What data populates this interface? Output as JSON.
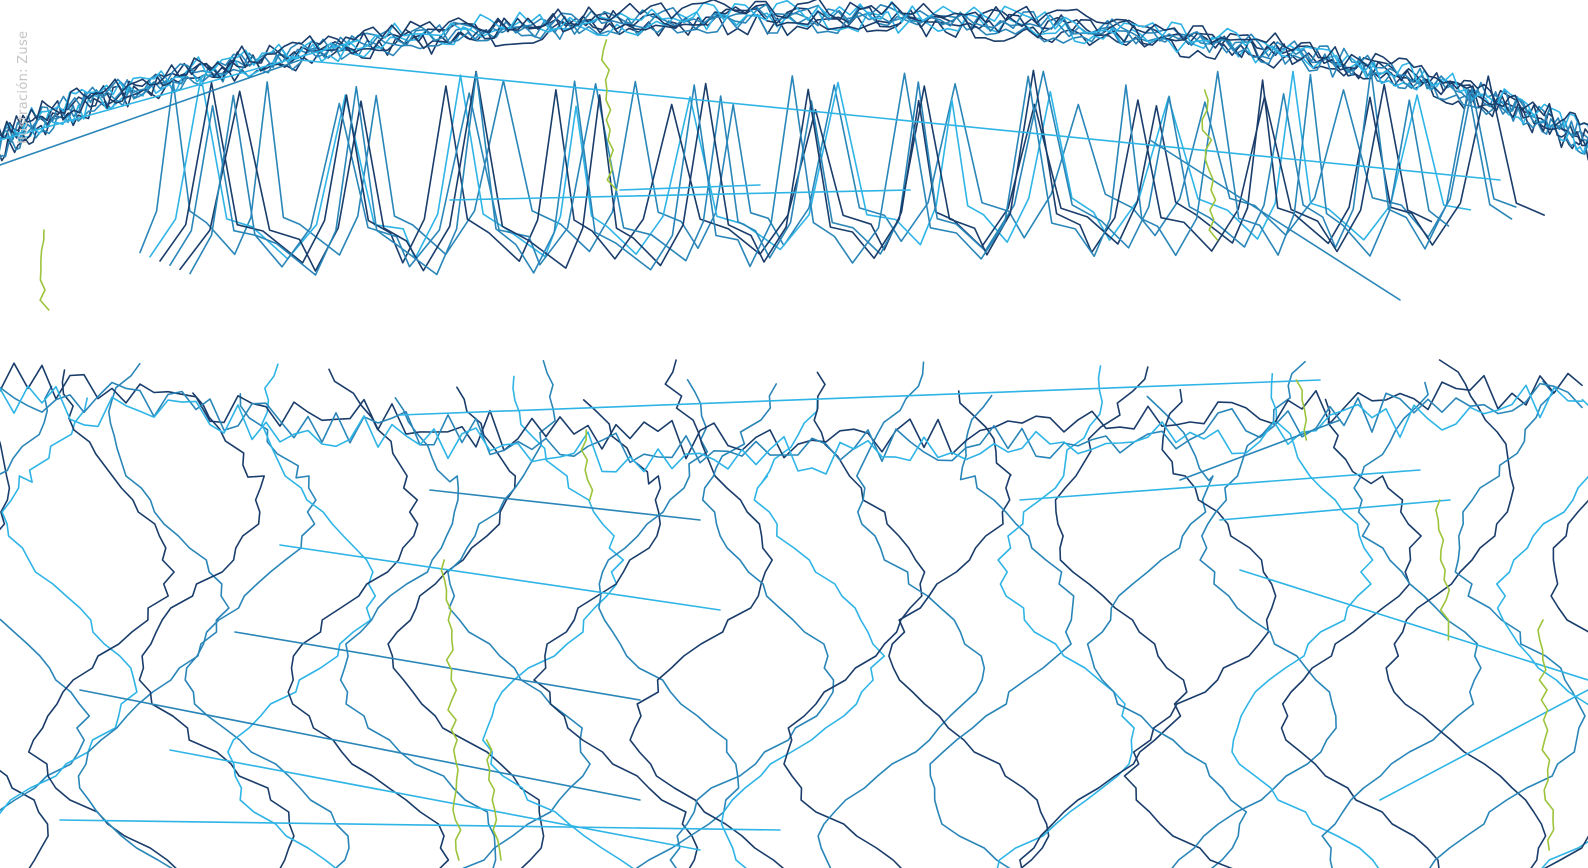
{
  "credit": {
    "text": "Ilustración: Zuse"
  },
  "artwork": {
    "palette": {
      "navy": "#1a3d6b",
      "teal": "#2a86b8",
      "cyan": "#2fb4e6",
      "lime": "#9cc43b"
    }
  }
}
